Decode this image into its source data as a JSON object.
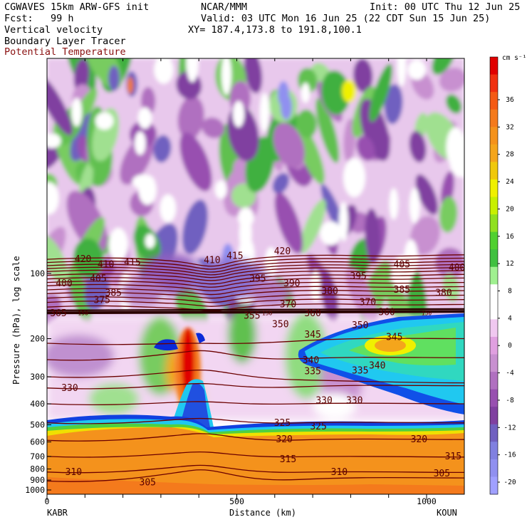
{
  "header": {
    "model": "CGWAVES 15km ARW-GFS init",
    "org": "NCAR/MMM",
    "init": "Init: 00 UTC Thu 12 Jun 25",
    "fcst": "Fcst:   99 h",
    "valid": "Valid: 03 UTC Mon 16 Jun 25 (22 CDT Sun 15 Jun 25)",
    "field1": "Vertical velocity",
    "xy": "XY= 187.4,173.8 to 191.8,100.1",
    "field2": "Boundary Layer Tracer",
    "field3": "Potential Temperature"
  },
  "colors": {
    "theta_line": "#6b0000",
    "header_red": "#8a1010"
  },
  "chart_data": {
    "type": "heatmap",
    "xlabel": "Distance (km)",
    "ylabel": "Pressure (hPa), log scale",
    "x_ticks": [
      "0",
      "500",
      "1000"
    ],
    "x_tick_values": [
      0,
      500,
      1000
    ],
    "xlim": [
      0,
      1110
    ],
    "y_ticks": [
      "100",
      "200",
      "300",
      "400",
      "500",
      "600",
      "700",
      "800",
      "900",
      "1000"
    ],
    "y_tick_values": [
      100,
      200,
      300,
      400,
      500,
      600,
      700,
      800,
      900,
      1000
    ],
    "y_scale": "log",
    "left_label": "KABR",
    "right_label": "KOUN",
    "colorbar": {
      "units": "cm s⁻¹",
      "labels": [
        "36",
        "32",
        "28",
        "24",
        "20",
        "16",
        "12",
        "8",
        "4",
        "0",
        "-4",
        "-8",
        "-12",
        "-16",
        "-20"
      ],
      "colors": [
        "#e00000",
        "#f03010",
        "#f45a14",
        "#f47a1c",
        "#f4921c",
        "#f4a51c",
        "#f0c80c",
        "#f0f000",
        "#c8f000",
        "#90e020",
        "#50d030",
        "#40c040",
        "#a0f090",
        "#ffffff",
        "#ffffff",
        "#f0c8f0",
        "#e0a0e0",
        "#c890d0",
        "#b070c0",
        "#9850b0",
        "#8040a0",
        "#7060c0",
        "#8080e0",
        "#9090f0",
        "#a0a0ff"
      ]
    },
    "theta_labels": [
      {
        "text": "420",
        "x": 95,
        "p": 86
      },
      {
        "text": "410",
        "x": 155,
        "p": 91
      },
      {
        "text": "415",
        "x": 225,
        "p": 89
      },
      {
        "text": "410",
        "x": 435,
        "p": 87
      },
      {
        "text": "415",
        "x": 495,
        "p": 83
      },
      {
        "text": "420",
        "x": 620,
        "p": 79
      },
      {
        "text": "405",
        "x": 935,
        "p": 91
      },
      {
        "text": "400",
        "x": 1080,
        "p": 94
      },
      {
        "text": "400",
        "x": 45,
        "p": 111
      },
      {
        "text": "405",
        "x": 135,
        "p": 106
      },
      {
        "text": "395",
        "x": 555,
        "p": 106
      },
      {
        "text": "390",
        "x": 645,
        "p": 111
      },
      {
        "text": "395",
        "x": 820,
        "p": 103
      },
      {
        "text": "385",
        "x": 175,
        "p": 123
      },
      {
        "text": "385",
        "x": 935,
        "p": 119
      },
      {
        "text": "380",
        "x": 745,
        "p": 121
      },
      {
        "text": "380",
        "x": 1045,
        "p": 123
      },
      {
        "text": "375",
        "x": 145,
        "p": 133
      },
      {
        "text": "370",
        "x": 635,
        "p": 139
      },
      {
        "text": "370",
        "x": 845,
        "p": 136
      },
      {
        "text": "365",
        "x": 30,
        "p": 153
      },
      {
        "text": "360",
        "x": 700,
        "p": 153
      },
      {
        "text": "360",
        "x": 895,
        "p": 151
      },
      {
        "text": "355",
        "x": 540,
        "p": 157
      },
      {
        "text": "350",
        "x": 615,
        "p": 172
      },
      {
        "text": "350",
        "x": 825,
        "p": 174
      },
      {
        "text": "345",
        "x": 700,
        "p": 192
      },
      {
        "text": "345",
        "x": 915,
        "p": 197
      },
      {
        "text": "340",
        "x": 695,
        "p": 252
      },
      {
        "text": "340",
        "x": 870,
        "p": 267
      },
      {
        "text": "335",
        "x": 700,
        "p": 283
      },
      {
        "text": "335",
        "x": 825,
        "p": 281
      },
      {
        "text": "330",
        "x": 60,
        "p": 338
      },
      {
        "text": "330",
        "x": 730,
        "p": 387
      },
      {
        "text": "330",
        "x": 810,
        "p": 387
      },
      {
        "text": "325",
        "x": 620,
        "p": 490
      },
      {
        "text": "325",
        "x": 715,
        "p": 510
      },
      {
        "text": "320",
        "x": 625,
        "p": 585
      },
      {
        "text": "320",
        "x": 980,
        "p": 585
      },
      {
        "text": "315",
        "x": 635,
        "p": 722
      },
      {
        "text": "315",
        "x": 1070,
        "p": 700
      },
      {
        "text": "310",
        "x": 70,
        "p": 826
      },
      {
        "text": "310",
        "x": 770,
        "p": 826
      },
      {
        "text": "305",
        "x": 265,
        "p": 925
      },
      {
        "text": "305",
        "x": 1040,
        "p": 840
      }
    ],
    "theta_small_labels": [
      {
        "text": "150",
        "x": 95,
        "p": 152
      },
      {
        "text": "150",
        "x": 580,
        "p": 152
      },
      {
        "text": "150",
        "x": 1000,
        "p": 152
      }
    ]
  }
}
